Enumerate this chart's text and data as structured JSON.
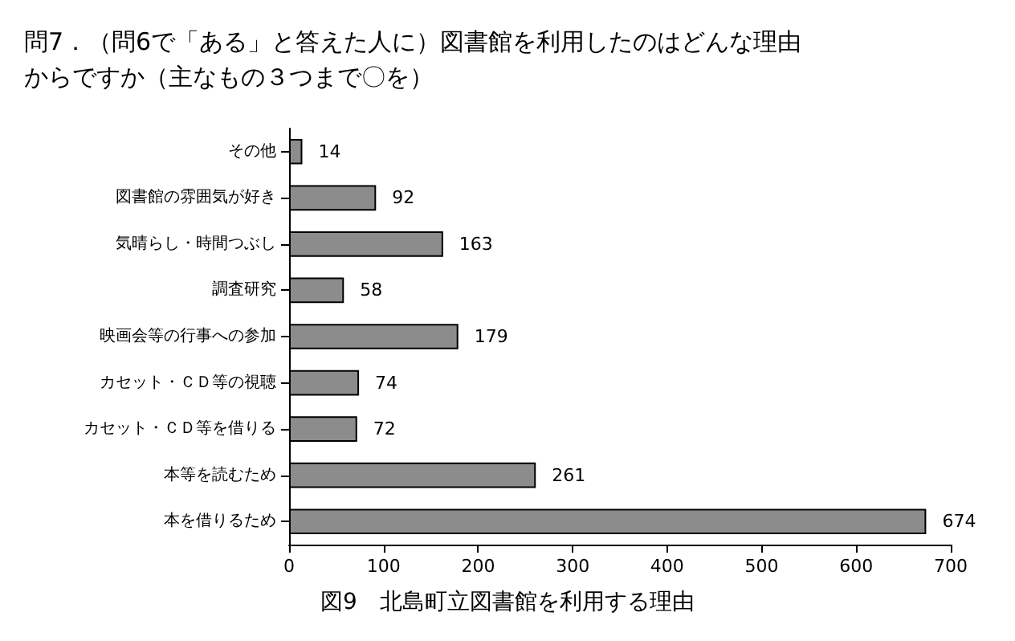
{
  "chart_data": {
    "type": "bar",
    "orientation": "horizontal",
    "title": "問7．（問6で「ある」と答えた人に）図書館を利用したのはどんな理由からですか（主なもの３つまで〇を）",
    "categories": [
      "その他",
      "図書館の雰囲気が好き",
      "気晴らし・時間つぶし",
      "調査研究",
      "映画会等の行事への参加",
      "カセット・ＣＤ等の視聴",
      "カセット・ＣＤ等を借りる",
      "本等を読むため",
      "本を借りるため"
    ],
    "values": [
      14,
      92,
      163,
      58,
      179,
      74,
      72,
      261,
      674
    ],
    "color": "#8c8c8c",
    "xlim": [
      0,
      700
    ],
    "xticks": [
      0,
      100,
      200,
      300,
      400,
      500,
      600,
      700
    ],
    "data_labels": true,
    "grid": false,
    "annotations": [
      "図9　北島町立図書館を利用する理由"
    ]
  }
}
